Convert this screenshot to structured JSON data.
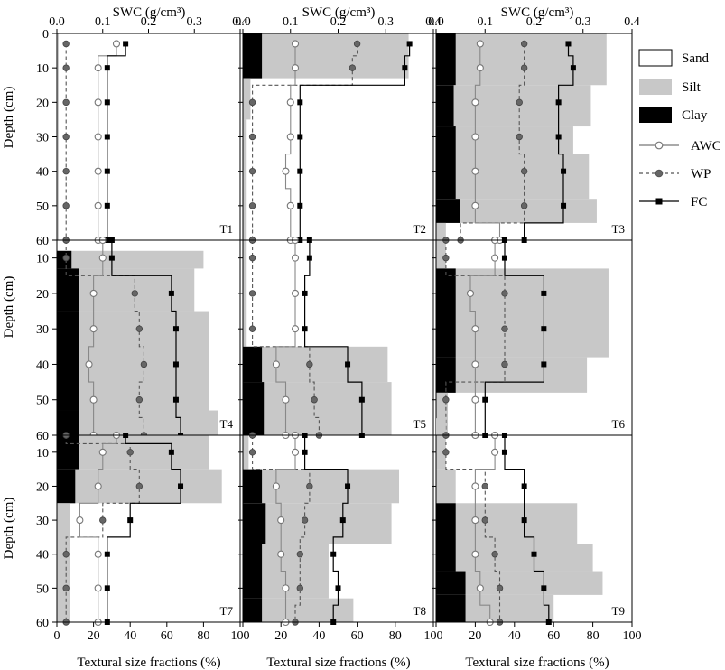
{
  "chart_data": {
    "type": "composite_profile_panels",
    "top_axis_label": "SWC (g/cm³)",
    "top_ticks": [
      "0.0",
      "0.1",
      "0.2",
      "0.3",
      "0.4"
    ],
    "top_xlim": [
      0,
      0.4
    ],
    "bottom_axis_label": "Textural size fractions (%)",
    "bottom_ticks": [
      "0",
      "20",
      "40",
      "60",
      "80",
      "100"
    ],
    "bottom_xlim": [
      0,
      100
    ],
    "y_label": "Depth (cm)",
    "y_ticks": [
      0,
      10,
      20,
      30,
      40,
      50,
      60
    ],
    "legend": {
      "sand": "Sand",
      "silt": "Silt",
      "clay": "Clay",
      "awc": "AWC",
      "wp": "WP",
      "fc": "FC"
    },
    "colors": {
      "silt": "#c8c8c8",
      "clay": "#000000",
      "awc": "#ffffff",
      "wp": "#666666",
      "fc": "#000000"
    },
    "panels": [
      {
        "name": "T1",
        "depth": [
          3,
          10,
          20,
          30,
          40,
          50,
          60
        ],
        "awc": [
          0.13,
          0.09,
          0.09,
          0.09,
          0.09,
          0.09,
          0.09
        ],
        "wp": [
          0.02,
          0.02,
          0.02,
          0.02,
          0.02,
          0.02,
          0.02
        ],
        "fc": [
          0.15,
          0.11,
          0.11,
          0.11,
          0.11,
          0.11,
          0.11
        ],
        "texture": [
          {
            "top": 0,
            "bottom": 60,
            "clay": 0,
            "silt": 1
          }
        ]
      },
      {
        "name": "T2",
        "depth": [
          3,
          10,
          20,
          30,
          40,
          50,
          60
        ],
        "awc": [
          0.11,
          0.11,
          0.1,
          0.1,
          0.09,
          0.1,
          0.1
        ],
        "wp": [
          0.24,
          0.23,
          0.02,
          0.02,
          0.02,
          0.02,
          0.02
        ],
        "fc": [
          0.35,
          0.34,
          0.12,
          0.12,
          0.12,
          0.12,
          0.12
        ],
        "texture": [
          {
            "top": 0,
            "bottom": 13,
            "clay": 10,
            "silt": 87
          },
          {
            "top": 13,
            "bottom": 25,
            "clay": 0,
            "silt": 4
          },
          {
            "top": 25,
            "bottom": 60,
            "clay": 0,
            "silt": 2
          }
        ]
      },
      {
        "name": "T3",
        "depth": [
          3,
          10,
          20,
          30,
          40,
          50,
          60
        ],
        "awc": [
          0.09,
          0.09,
          0.08,
          0.08,
          0.08,
          0.08,
          0.13
        ],
        "wp": [
          0.18,
          0.18,
          0.17,
          0.17,
          0.18,
          0.18,
          0.05
        ],
        "fc": [
          0.27,
          0.28,
          0.25,
          0.25,
          0.26,
          0.26,
          0.18
        ],
        "texture": [
          {
            "top": 0,
            "bottom": 15,
            "clay": 10,
            "silt": 87
          },
          {
            "top": 15,
            "bottom": 27,
            "clay": 9,
            "silt": 79
          },
          {
            "top": 27,
            "bottom": 35,
            "clay": 10,
            "silt": 70
          },
          {
            "top": 35,
            "bottom": 48,
            "clay": 10,
            "silt": 78
          },
          {
            "top": 48,
            "bottom": 55,
            "clay": 12,
            "silt": 82
          },
          {
            "top": 55,
            "bottom": 60,
            "clay": 0,
            "silt": 5
          }
        ]
      },
      {
        "name": "T4",
        "depth": [
          5,
          10,
          20,
          30,
          40,
          50,
          60
        ],
        "awc": [
          0.1,
          0.1,
          0.08,
          0.08,
          0.07,
          0.08,
          0.08
        ],
        "wp": [
          0.02,
          0.02,
          0.17,
          0.18,
          0.19,
          0.18,
          0.19
        ],
        "fc": [
          0.12,
          0.12,
          0.25,
          0.26,
          0.26,
          0.26,
          0.27
        ],
        "texture": [
          {
            "top": 8,
            "bottom": 13,
            "clay": 8,
            "silt": 80
          },
          {
            "top": 13,
            "bottom": 25,
            "clay": 12,
            "silt": 75
          },
          {
            "top": 25,
            "bottom": 53,
            "clay": 12,
            "silt": 83
          },
          {
            "top": 53,
            "bottom": 60,
            "clay": 12,
            "silt": 88
          }
        ]
      },
      {
        "name": "T5",
        "depth": [
          5,
          10,
          20,
          30,
          40,
          50,
          60
        ],
        "awc": [
          0.11,
          0.11,
          0.11,
          0.11,
          0.07,
          0.09,
          0.09
        ],
        "wp": [
          0.02,
          0.02,
          0.02,
          0.02,
          0.14,
          0.15,
          0.16
        ],
        "fc": [
          0.14,
          0.14,
          0.13,
          0.13,
          0.22,
          0.25,
          0.25
        ],
        "texture": [
          {
            "top": 5,
            "bottom": 35,
            "clay": 0,
            "silt": 2
          },
          {
            "top": 35,
            "bottom": 45,
            "clay": 10,
            "silt": 76
          },
          {
            "top": 45,
            "bottom": 60,
            "clay": 11,
            "silt": 78
          }
        ]
      },
      {
        "name": "T6",
        "depth": [
          5,
          10,
          20,
          30,
          40,
          50,
          60
        ],
        "awc": [
          0.12,
          0.12,
          0.07,
          0.08,
          0.08,
          0.08,
          0.08
        ],
        "wp": [
          0.02,
          0.02,
          0.14,
          0.14,
          0.14,
          0.02,
          0.02
        ],
        "fc": [
          0.14,
          0.14,
          0.22,
          0.22,
          0.22,
          0.1,
          0.1
        ],
        "texture": [
          {
            "top": 5,
            "bottom": 13,
            "clay": 0,
            "silt": 5
          },
          {
            "top": 13,
            "bottom": 38,
            "clay": 10,
            "silt": 88
          },
          {
            "top": 38,
            "bottom": 48,
            "clay": 10,
            "silt": 77
          },
          {
            "top": 48,
            "bottom": 60,
            "clay": 0,
            "silt": 6
          }
        ]
      },
      {
        "name": "T7",
        "depth": [
          5,
          10,
          20,
          30,
          40,
          50,
          60
        ],
        "awc": [
          0.13,
          0.1,
          0.09,
          0.05,
          0.09,
          0.09,
          0.09
        ],
        "wp": [
          0.02,
          0.16,
          0.18,
          0.1,
          0.02,
          0.02,
          0.02
        ],
        "fc": [
          0.15,
          0.25,
          0.27,
          0.16,
          0.11,
          0.11,
          0.11
        ],
        "texture": [
          {
            "top": 5,
            "bottom": 15,
            "clay": 12,
            "silt": 83
          },
          {
            "top": 15,
            "bottom": 25,
            "clay": 10,
            "silt": 90
          },
          {
            "top": 25,
            "bottom": 60,
            "clay": 0,
            "silt": 7
          }
        ]
      },
      {
        "name": "T8",
        "depth": [
          5,
          10,
          20,
          30,
          40,
          50,
          60
        ],
        "awc": [
          0.11,
          0.11,
          0.07,
          0.08,
          0.08,
          0.09,
          0.09
        ],
        "wp": [
          0.02,
          0.02,
          0.14,
          0.13,
          0.12,
          0.12,
          0.11
        ],
        "fc": [
          0.13,
          0.13,
          0.22,
          0.21,
          0.19,
          0.2,
          0.19
        ],
        "texture": [
          {
            "top": 5,
            "bottom": 15,
            "clay": 0,
            "silt": 3
          },
          {
            "top": 15,
            "bottom": 25,
            "clay": 10,
            "silt": 82
          },
          {
            "top": 25,
            "bottom": 37,
            "clay": 12,
            "silt": 78
          },
          {
            "top": 37,
            "bottom": 53,
            "clay": 10,
            "silt": 45
          },
          {
            "top": 53,
            "bottom": 60,
            "clay": 10,
            "silt": 58
          }
        ]
      },
      {
        "name": "T9",
        "depth": [
          5,
          10,
          20,
          30,
          40,
          50,
          60
        ],
        "awc": [
          0.12,
          0.12,
          0.08,
          0.08,
          0.08,
          0.09,
          0.11
        ],
        "wp": [
          0.02,
          0.02,
          0.1,
          0.1,
          0.12,
          0.13,
          0.13
        ],
        "fc": [
          0.14,
          0.14,
          0.18,
          0.18,
          0.2,
          0.22,
          0.23
        ],
        "texture": [
          {
            "top": 0,
            "bottom": 15,
            "clay": 0,
            "silt": 5
          },
          {
            "top": 15,
            "bottom": 25,
            "clay": 0,
            "silt": 10
          },
          {
            "top": 25,
            "bottom": 37,
            "clay": 10,
            "silt": 72
          },
          {
            "top": 37,
            "bottom": 45,
            "clay": 10,
            "silt": 80
          },
          {
            "top": 45,
            "bottom": 52,
            "clay": 15,
            "silt": 85
          },
          {
            "top": 52,
            "bottom": 60,
            "clay": 15,
            "silt": 60
          }
        ]
      }
    ]
  }
}
